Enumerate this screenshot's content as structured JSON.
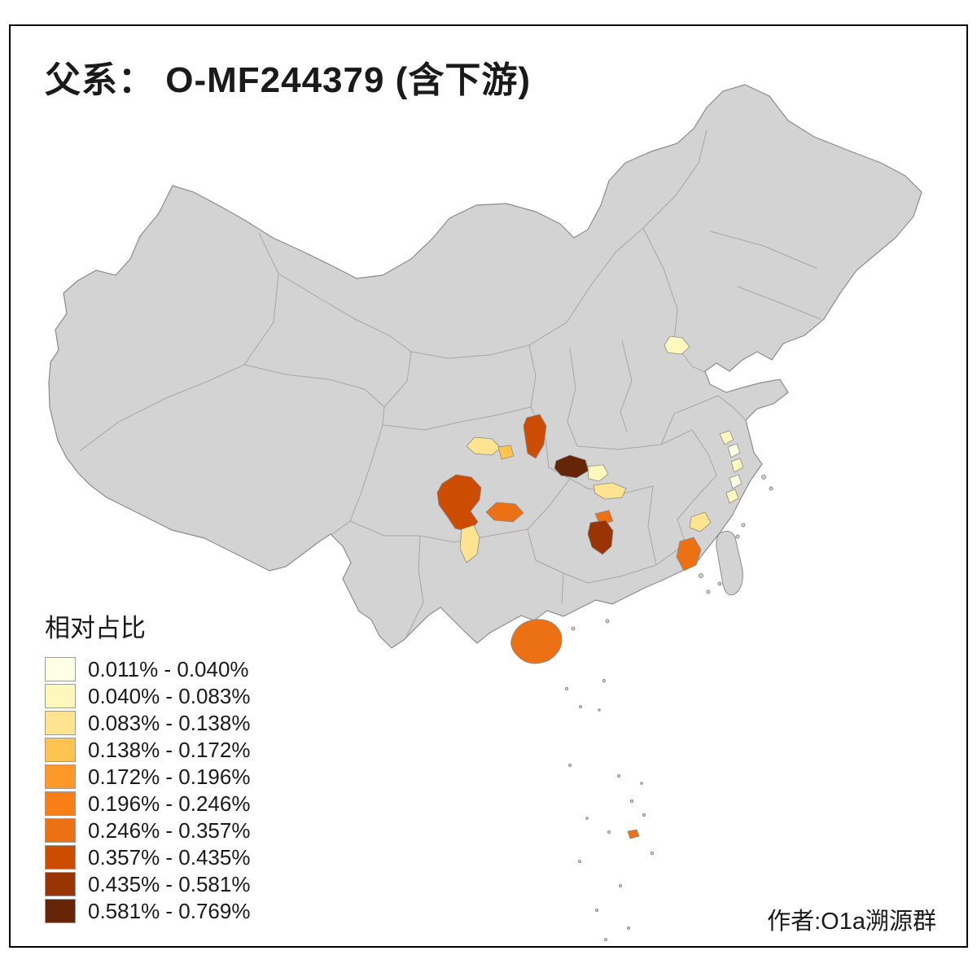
{
  "title": "父系： O-MF244379 (含下游)",
  "author": "作者:O1a溯源群",
  "legend": {
    "title": "相对占比",
    "items": [
      {
        "label": "0.011% - 0.040%",
        "color": "#FFFFE5"
      },
      {
        "label": "0.040% - 0.083%",
        "color": "#FFF7BC"
      },
      {
        "label": "0.083% - 0.138%",
        "color": "#FEE391"
      },
      {
        "label": "0.138% - 0.172%",
        "color": "#FEC44F"
      },
      {
        "label": "0.172% - 0.196%",
        "color": "#FE9929"
      },
      {
        "label": "0.196% - 0.246%",
        "color": "#F87F17"
      },
      {
        "label": "0.246% - 0.357%",
        "color": "#EC7014"
      },
      {
        "label": "0.357% - 0.435%",
        "color": "#CC4C02"
      },
      {
        "label": "0.435% - 0.581%",
        "color": "#993404"
      },
      {
        "label": "0.581% - 0.769%",
        "color": "#662506"
      }
    ]
  },
  "map": {
    "base_color": "#D3D3D3",
    "border_color": "#8C8C8C",
    "province_border_color": "#A6A6A6",
    "background": "#FFFFFF"
  },
  "chart_data": {
    "type": "choropleth",
    "title": "父系： O-MF244379 (含下游)",
    "legend_title": "相对占比",
    "unit": "%",
    "value_range": [
      0.011,
      0.769
    ],
    "bins": [
      "0.011% - 0.040%",
      "0.040% - 0.083%",
      "0.083% - 0.138%",
      "0.138% - 0.172%",
      "0.172% - 0.196%",
      "0.196% - 0.246%",
      "0.246% - 0.357%",
      "0.357% - 0.435%",
      "0.435% - 0.581%",
      "0.581% - 0.769%"
    ],
    "regions": [
      {
        "id": "beijing-area",
        "bin": 1
      },
      {
        "id": "sichuan-central",
        "bin": 2
      },
      {
        "id": "sichuan-central-east",
        "bin": 3
      },
      {
        "id": "sichuan-east",
        "bin": 7
      },
      {
        "id": "hubei-west",
        "bin": 9
      },
      {
        "id": "hubei-central",
        "bin": 1
      },
      {
        "id": "hunan-north",
        "bin": 2
      },
      {
        "id": "sichuan-southwest",
        "bin": 7
      },
      {
        "id": "sichuan-south",
        "bin": 6
      },
      {
        "id": "yunnan-northeast",
        "bin": 2
      },
      {
        "id": "hunan-central-north",
        "bin": 6
      },
      {
        "id": "hunan-central",
        "bin": 8
      },
      {
        "id": "zhejiang-south-coast",
        "bin": 2
      },
      {
        "id": "zhejiang-coast-1",
        "bin": 1
      },
      {
        "id": "zhejiang-coast-2",
        "bin": 0
      },
      {
        "id": "zhejiang-coast-3",
        "bin": 1
      },
      {
        "id": "zhejiang-coast-4",
        "bin": 0
      },
      {
        "id": "zhejiang-coast-5",
        "bin": 1
      },
      {
        "id": "fujian-south",
        "bin": 6
      },
      {
        "id": "hainan",
        "bin": 6
      },
      {
        "id": "south-china-sea-island",
        "bin": 6
      }
    ]
  }
}
